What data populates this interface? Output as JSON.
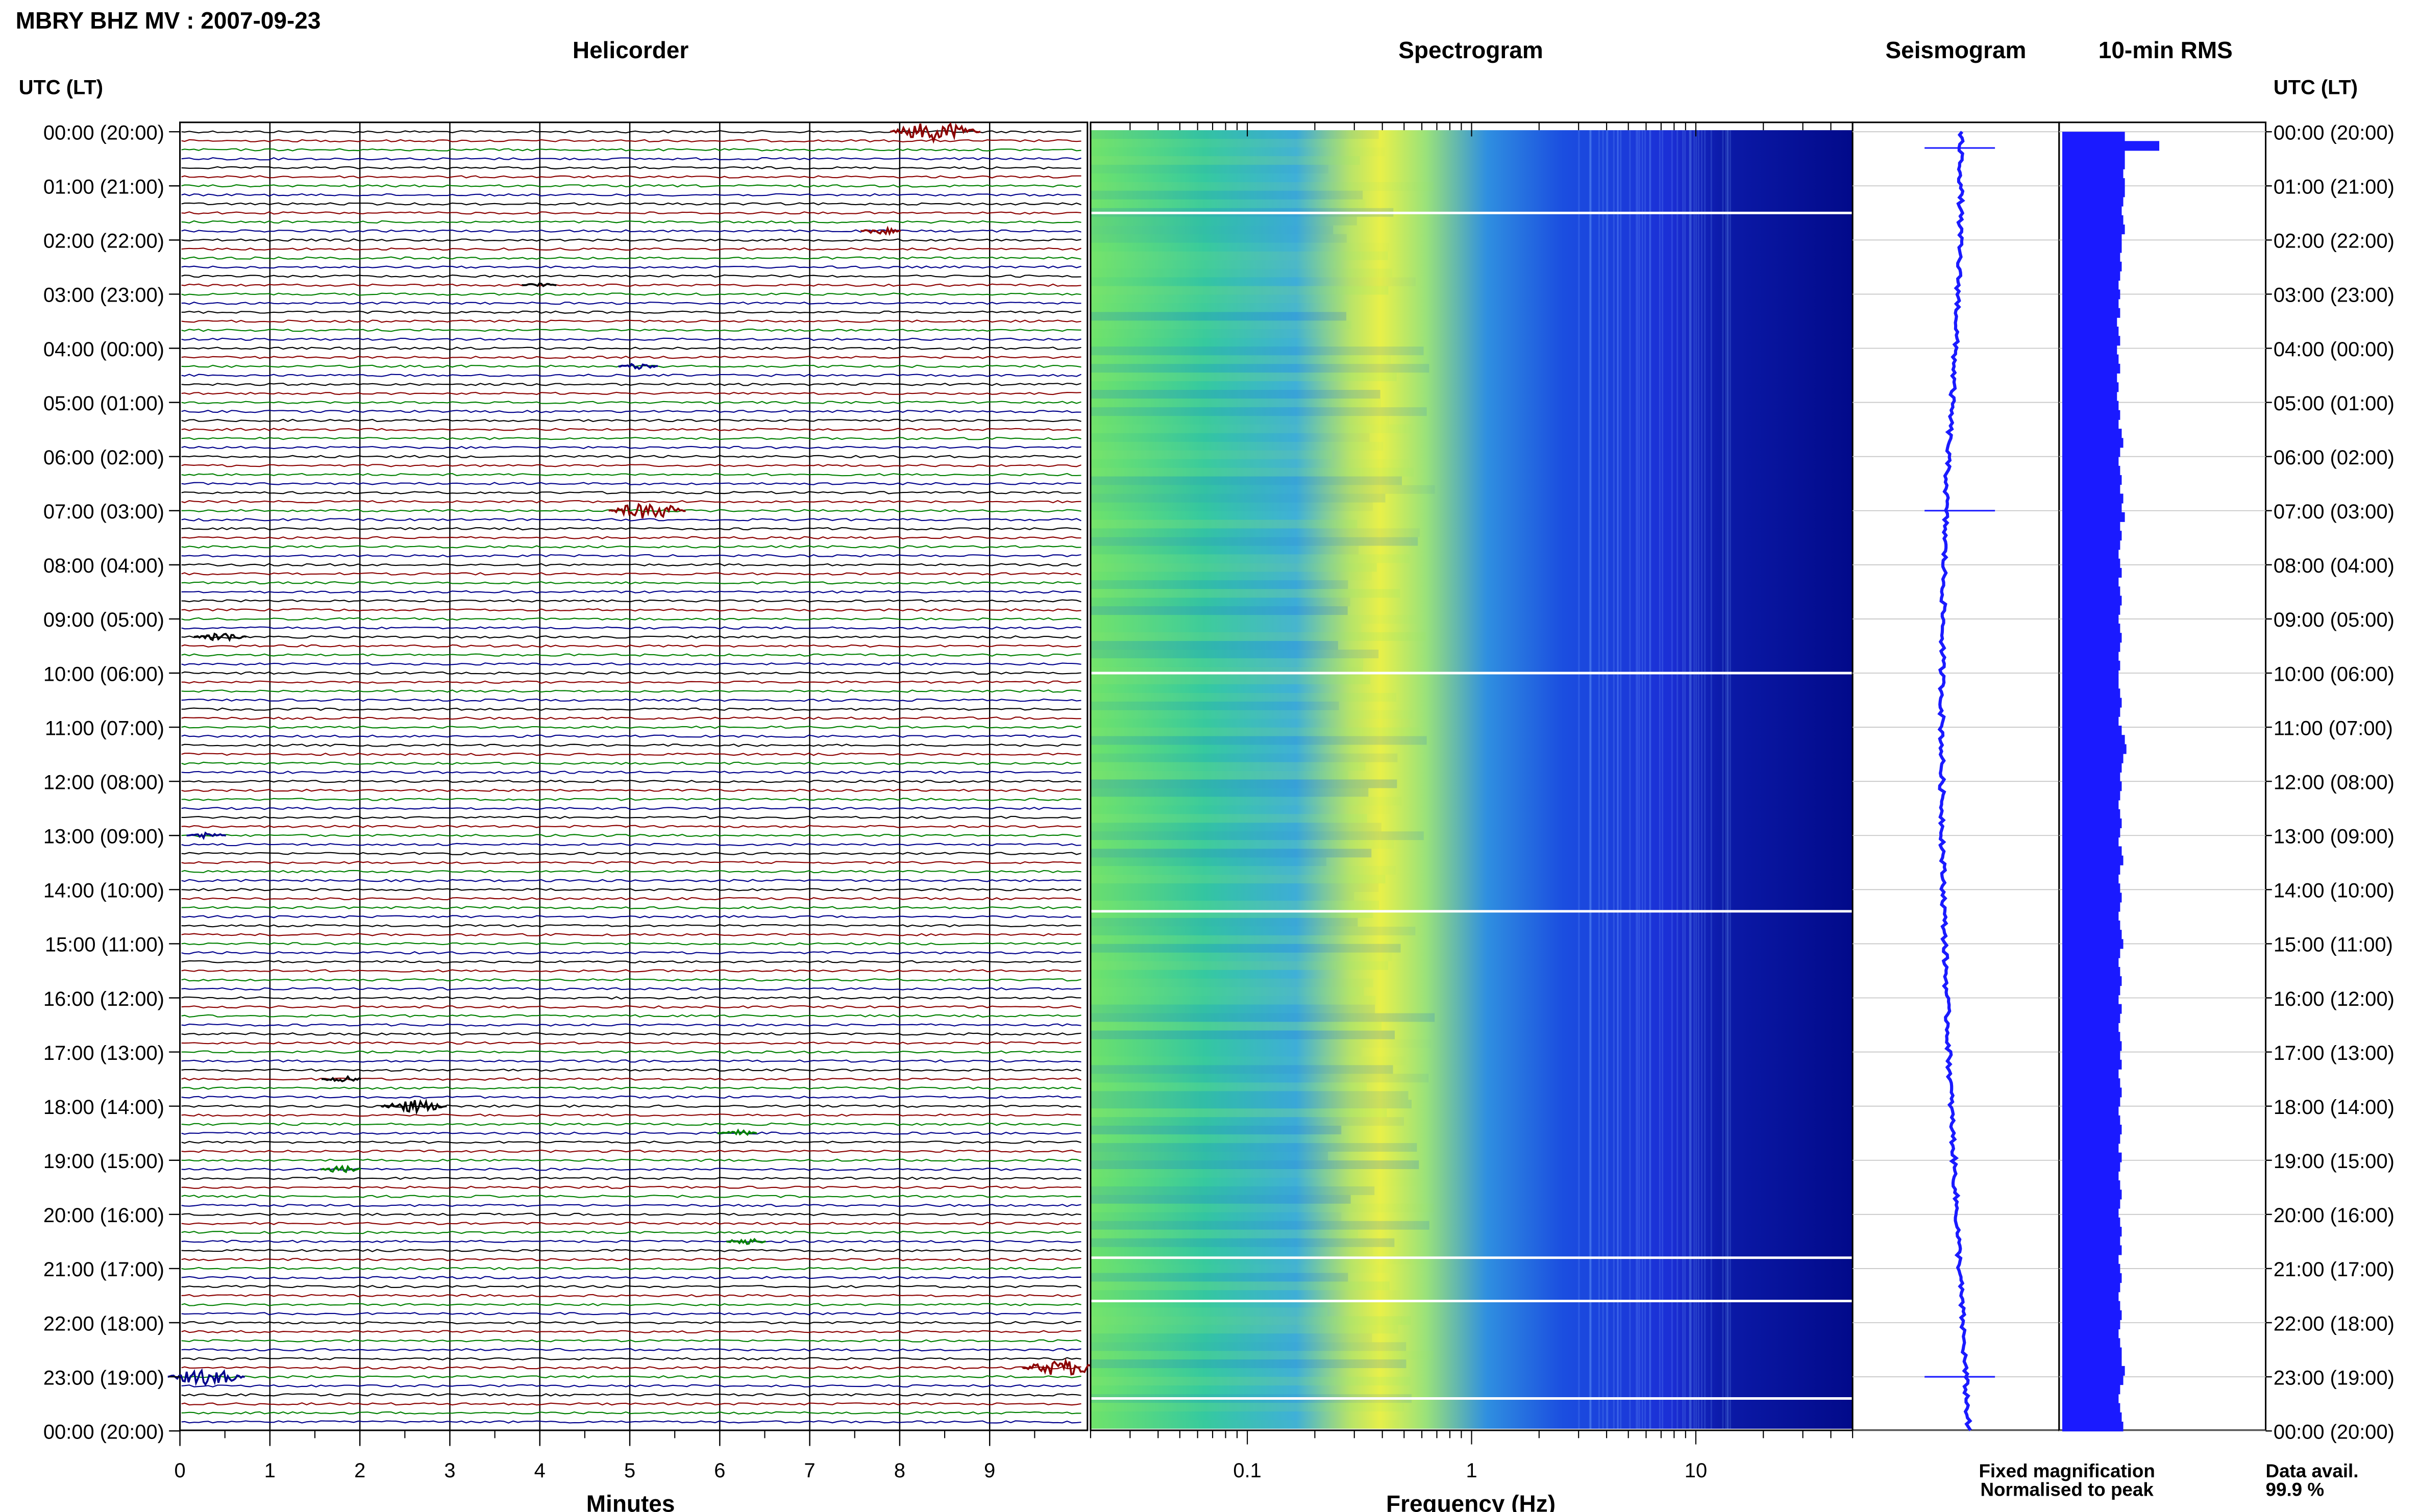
{
  "title": "MBRY BHZ MV : 2007-09-23",
  "panels": {
    "helicorder": "Helicorder",
    "spectrogram": "Spectrogram",
    "seismogram": "Seismogram",
    "rms": "10-min RMS"
  },
  "axis_header_left": "UTC (LT)",
  "axis_header_right": "UTC (LT)",
  "time_labels": [
    "00:00 (20:00)",
    "01:00 (21:00)",
    "02:00 (22:00)",
    "03:00 (23:00)",
    "04:00 (00:00)",
    "05:00 (01:00)",
    "06:00 (02:00)",
    "07:00 (03:00)",
    "08:00 (04:00)",
    "09:00 (05:00)",
    "10:00 (06:00)",
    "11:00 (07:00)",
    "12:00 (08:00)",
    "13:00 (09:00)",
    "14:00 (10:00)",
    "15:00 (11:00)",
    "16:00 (12:00)",
    "17:00 (13:00)",
    "18:00 (14:00)",
    "19:00 (15:00)",
    "20:00 (16:00)",
    "21:00 (17:00)",
    "22:00 (18:00)",
    "23:00 (19:00)",
    "00:00 (20:00)"
  ],
  "minutes_ticks": [
    "0",
    "1",
    "2",
    "3",
    "4",
    "5",
    "6",
    "7",
    "8",
    "9"
  ],
  "minutes_label": "Minutes",
  "freq_ticks": [
    "0.1",
    "1",
    "10"
  ],
  "freq_label": "Frequency (Hz)",
  "legend": {
    "fixed": "Fixed magnification",
    "normalised": "Normalised to peak",
    "fixed_color": "#1a1aff",
    "normalised_color": "#ff1a1a"
  },
  "data_avail": {
    "label": "Data avail.",
    "value": "99.9 %"
  },
  "colors": {
    "trace_cycle": [
      "#000000",
      "#8b0000",
      "#008000",
      "#00008b"
    ],
    "spectrogram_low": "#6ee36b",
    "spectrogram_mid": "#e8f04a",
    "spectrogram_high": "#1b2fd6",
    "spectrogram_floor": "#020a8a",
    "bars": "#1a1aff"
  },
  "chart_data": {
    "type": "heatmap",
    "title": "MBRY BHZ MV : 2007-09-23",
    "helicorder": {
      "xlabel": "Minutes",
      "x_ticks": [
        0,
        1,
        2,
        3,
        4,
        5,
        6,
        7,
        8,
        9
      ],
      "xlim": [
        0,
        10
      ],
      "ylabel": "UTC (LT)",
      "lines_per_hour": 6,
      "events": [
        {
          "hour": 0,
          "line": 0,
          "minute": 8.4,
          "amplitude": 6,
          "color": "#8b0000"
        },
        {
          "hour": 1,
          "line": 5,
          "minute": 7.8,
          "amplitude": 2,
          "color": "#8b0000"
        },
        {
          "hour": 2,
          "line": 5,
          "minute": 4.0,
          "amplitude": 1.5,
          "color": "#000000"
        },
        {
          "hour": 4,
          "line": 2,
          "minute": 5.1,
          "amplitude": 2,
          "color": "#00008b"
        },
        {
          "hour": 7,
          "line": 0,
          "minute": 5.2,
          "amplitude": 5,
          "color": "#8b0000"
        },
        {
          "hour": 9,
          "line": 2,
          "minute": 0.45,
          "amplitude": 3,
          "color": "#000000"
        },
        {
          "hour": 13,
          "line": 0,
          "minute": 0.3,
          "amplitude": 2,
          "color": "#00008b"
        },
        {
          "hour": 17,
          "line": 3,
          "minute": 1.8,
          "amplitude": 2,
          "color": "#000000"
        },
        {
          "hour": 18,
          "line": 0,
          "minute": 2.6,
          "amplitude": 4,
          "color": "#000000"
        },
        {
          "hour": 18,
          "line": 3,
          "minute": 6.2,
          "amplitude": 2,
          "color": "#008000"
        },
        {
          "hour": 19,
          "line": 1,
          "minute": 1.8,
          "amplitude": 2,
          "color": "#008000"
        },
        {
          "hour": 20,
          "line": 3,
          "minute": 6.3,
          "amplitude": 2,
          "color": "#008000"
        },
        {
          "hour": 23,
          "line": 0,
          "minute": 0.3,
          "amplitude": 5,
          "color": "#00008b"
        },
        {
          "hour": 22,
          "line": 5,
          "minute": 9.8,
          "amplitude": 5,
          "color": "#8b0000"
        }
      ]
    },
    "spectrogram": {
      "xlabel": "Frequency (Hz)",
      "x_scale": "log",
      "x_ticks": [
        0.1,
        1,
        10
      ],
      "xlim": [
        0.02,
        50
      ],
      "peak_frequency_hz": 0.3,
      "gaps_hours": [
        1.5,
        10.0,
        14.4,
        20.8,
        21.6,
        23.4
      ]
    },
    "seismogram": {
      "events_hours": [
        0.3,
        7.0,
        23.0
      ]
    },
    "rms_10min": {
      "values": [
        40,
        62,
        40,
        40,
        39,
        40,
        40,
        39,
        38,
        39,
        40,
        38,
        38,
        37,
        38,
        37,
        36,
        37,
        36,
        37,
        35,
        36,
        37,
        35,
        36,
        37,
        35,
        36,
        35,
        36,
        37,
        36,
        38,
        39,
        37,
        36,
        37,
        38,
        37,
        39,
        38,
        40,
        37,
        38,
        37,
        36,
        37,
        38,
        36,
        37,
        38,
        37,
        36,
        37,
        38,
        37,
        36,
        37,
        36,
        36,
        37,
        38,
        37,
        36,
        38,
        40,
        41,
        39,
        38,
        37,
        38,
        37,
        36,
        37,
        38,
        37,
        36,
        38,
        39,
        37,
        36,
        37,
        38,
        37,
        36,
        37,
        38,
        39,
        37,
        36,
        37,
        38,
        37,
        36,
        38,
        37,
        36,
        37,
        38,
        37,
        38,
        36,
        37,
        38,
        37,
        36,
        37,
        38,
        37,
        36,
        38,
        37,
        36,
        37,
        38,
        37,
        36,
        37,
        38,
        37,
        38,
        36,
        37,
        38,
        37,
        36,
        37,
        38,
        37,
        36,
        37,
        38,
        38,
        40,
        39,
        37,
        36,
        37,
        38,
        39
      ]
    }
  }
}
